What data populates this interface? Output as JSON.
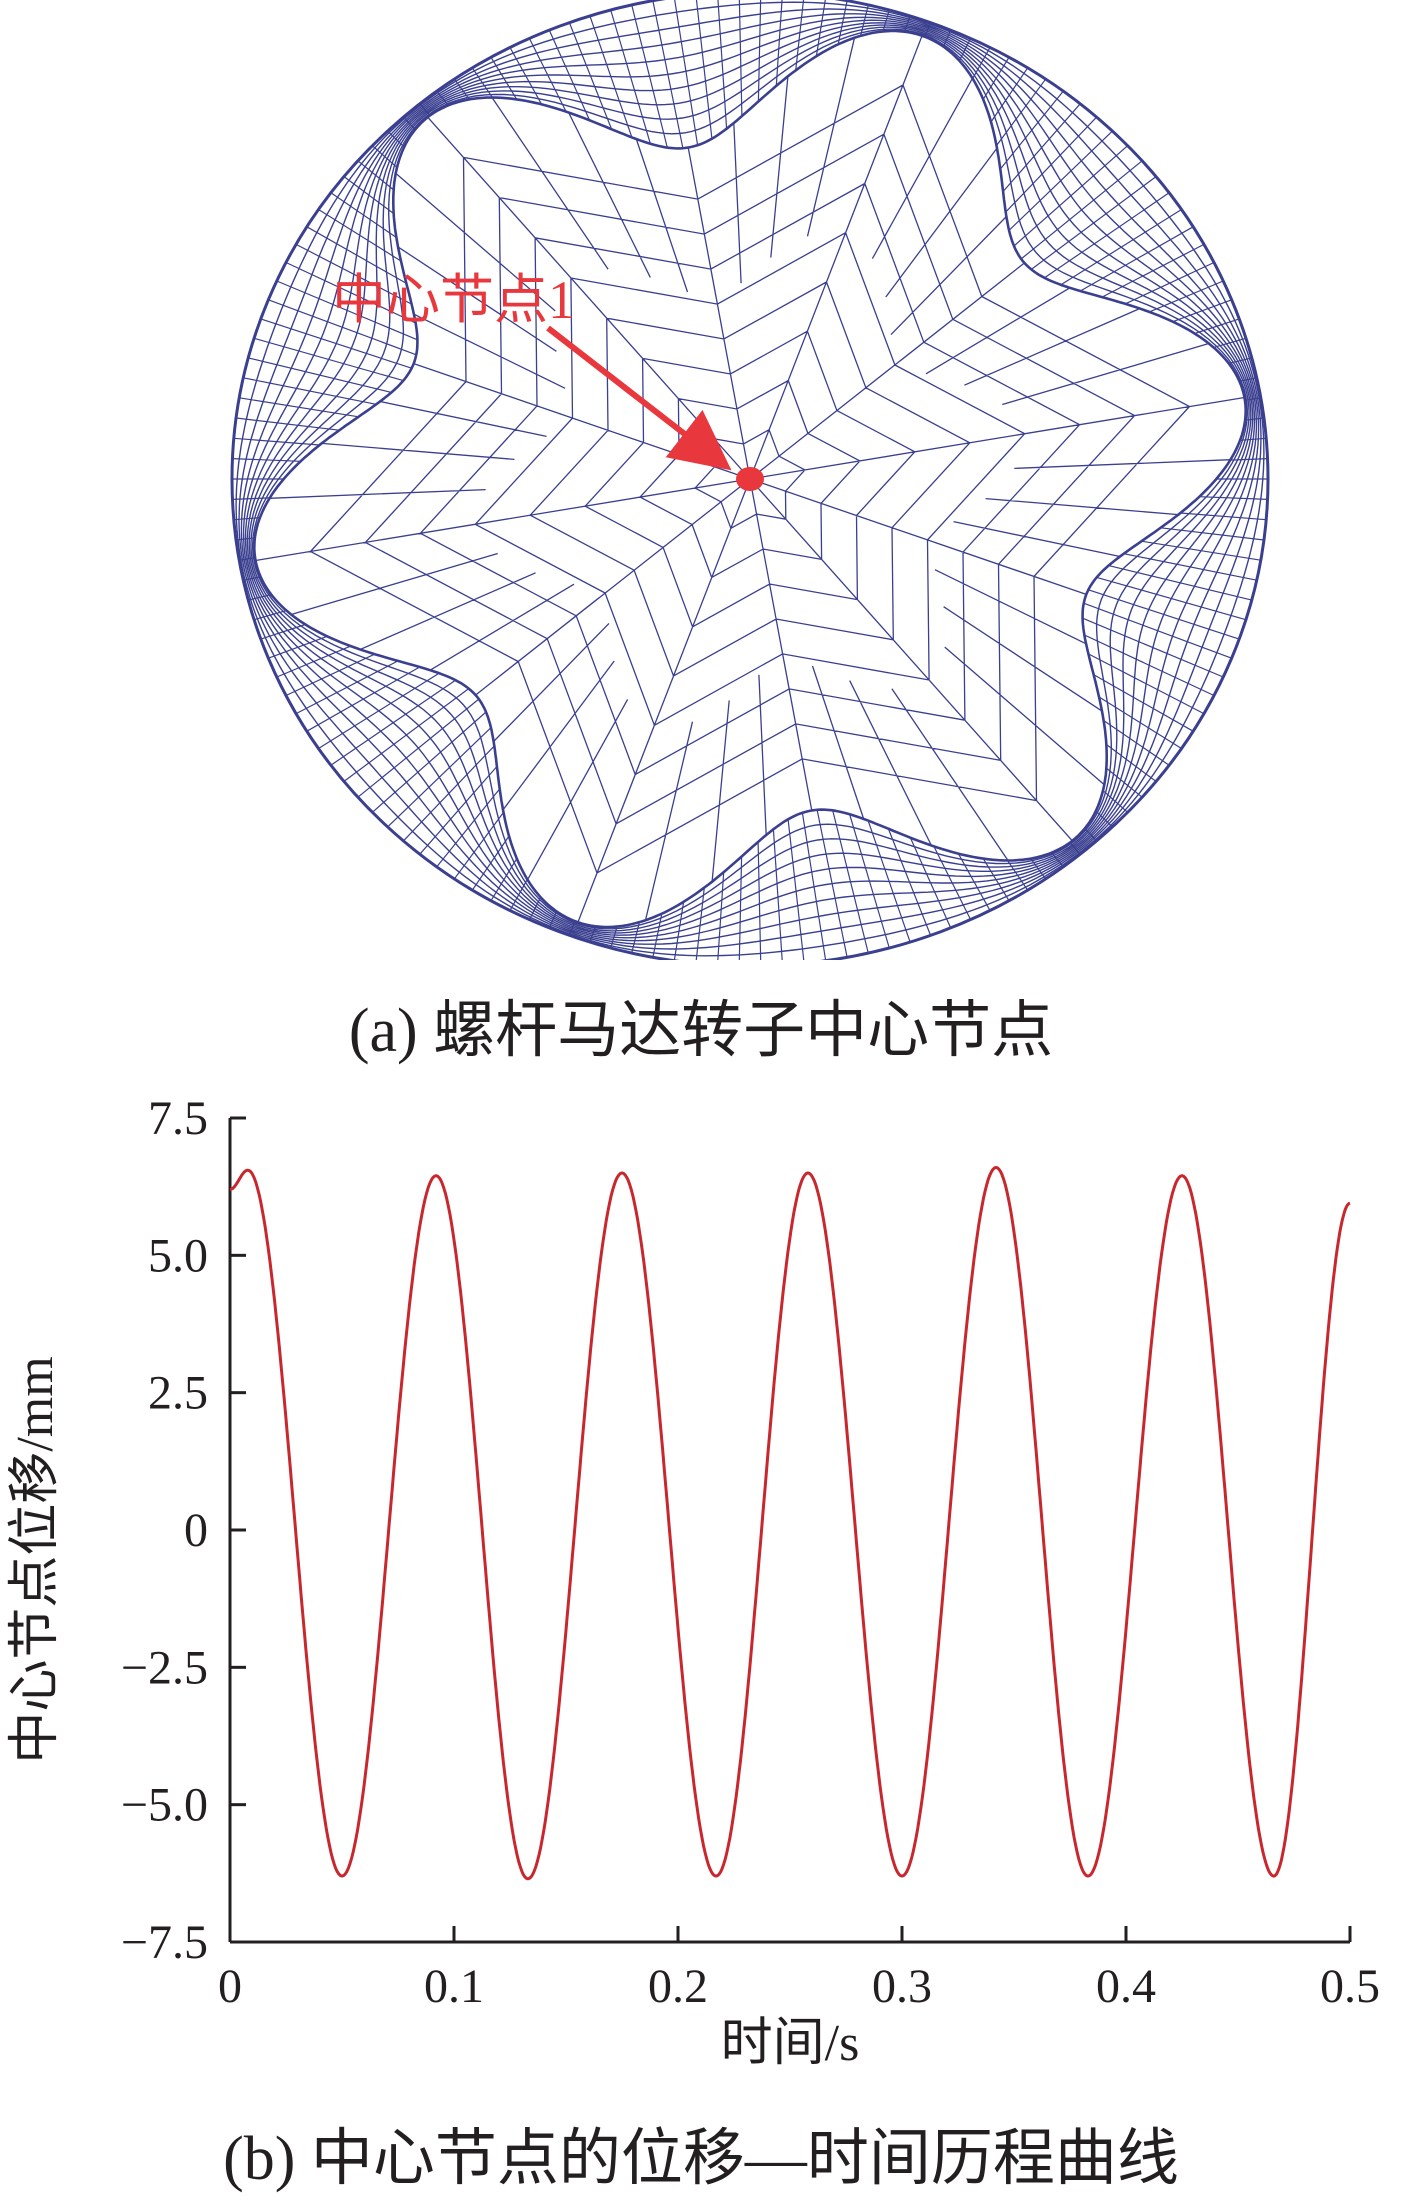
{
  "figure_a": {
    "caption": "(a) 螺杆马达转子中心节点",
    "node_label": "中心节点1",
    "lobes": 6,
    "mesh_color": "#3a3f8f",
    "annotation_color": "#e8383d"
  },
  "figure_b": {
    "caption": "(b) 中心节点的位移—时间历程曲线"
  },
  "chart_data": {
    "type": "line",
    "title": "",
    "xlabel": "时间/s",
    "ylabel": "中心节点位移/mm",
    "xlim": [
      0,
      0.5
    ],
    "ylim": [
      -7.5,
      7.5
    ],
    "x_ticks": [
      0,
      0.1,
      0.2,
      0.3,
      0.4,
      0.5
    ],
    "x_tick_labels": [
      "0",
      "0.1",
      "0.2",
      "0.3",
      "0.4",
      "0.5"
    ],
    "y_ticks": [
      7.5,
      5.0,
      2.5,
      0,
      -2.5,
      -5.0,
      -7.5
    ],
    "y_tick_labels": [
      "7.5",
      "5.0",
      "2.5",
      "0",
      "−2.5",
      "−5.0",
      "−7.5"
    ],
    "grid": false,
    "line_color": "#c8282d",
    "series": [
      {
        "name": "",
        "x": [
          0.0,
          0.008,
          0.05,
          0.092,
          0.133,
          0.175,
          0.217,
          0.258,
          0.3,
          0.342,
          0.383,
          0.425,
          0.466,
          0.5
        ],
        "y": [
          6.2,
          6.55,
          -6.3,
          6.45,
          -6.35,
          6.5,
          -6.3,
          6.5,
          -6.3,
          6.6,
          -6.3,
          6.45,
          -6.3,
          5.95
        ]
      }
    ]
  }
}
